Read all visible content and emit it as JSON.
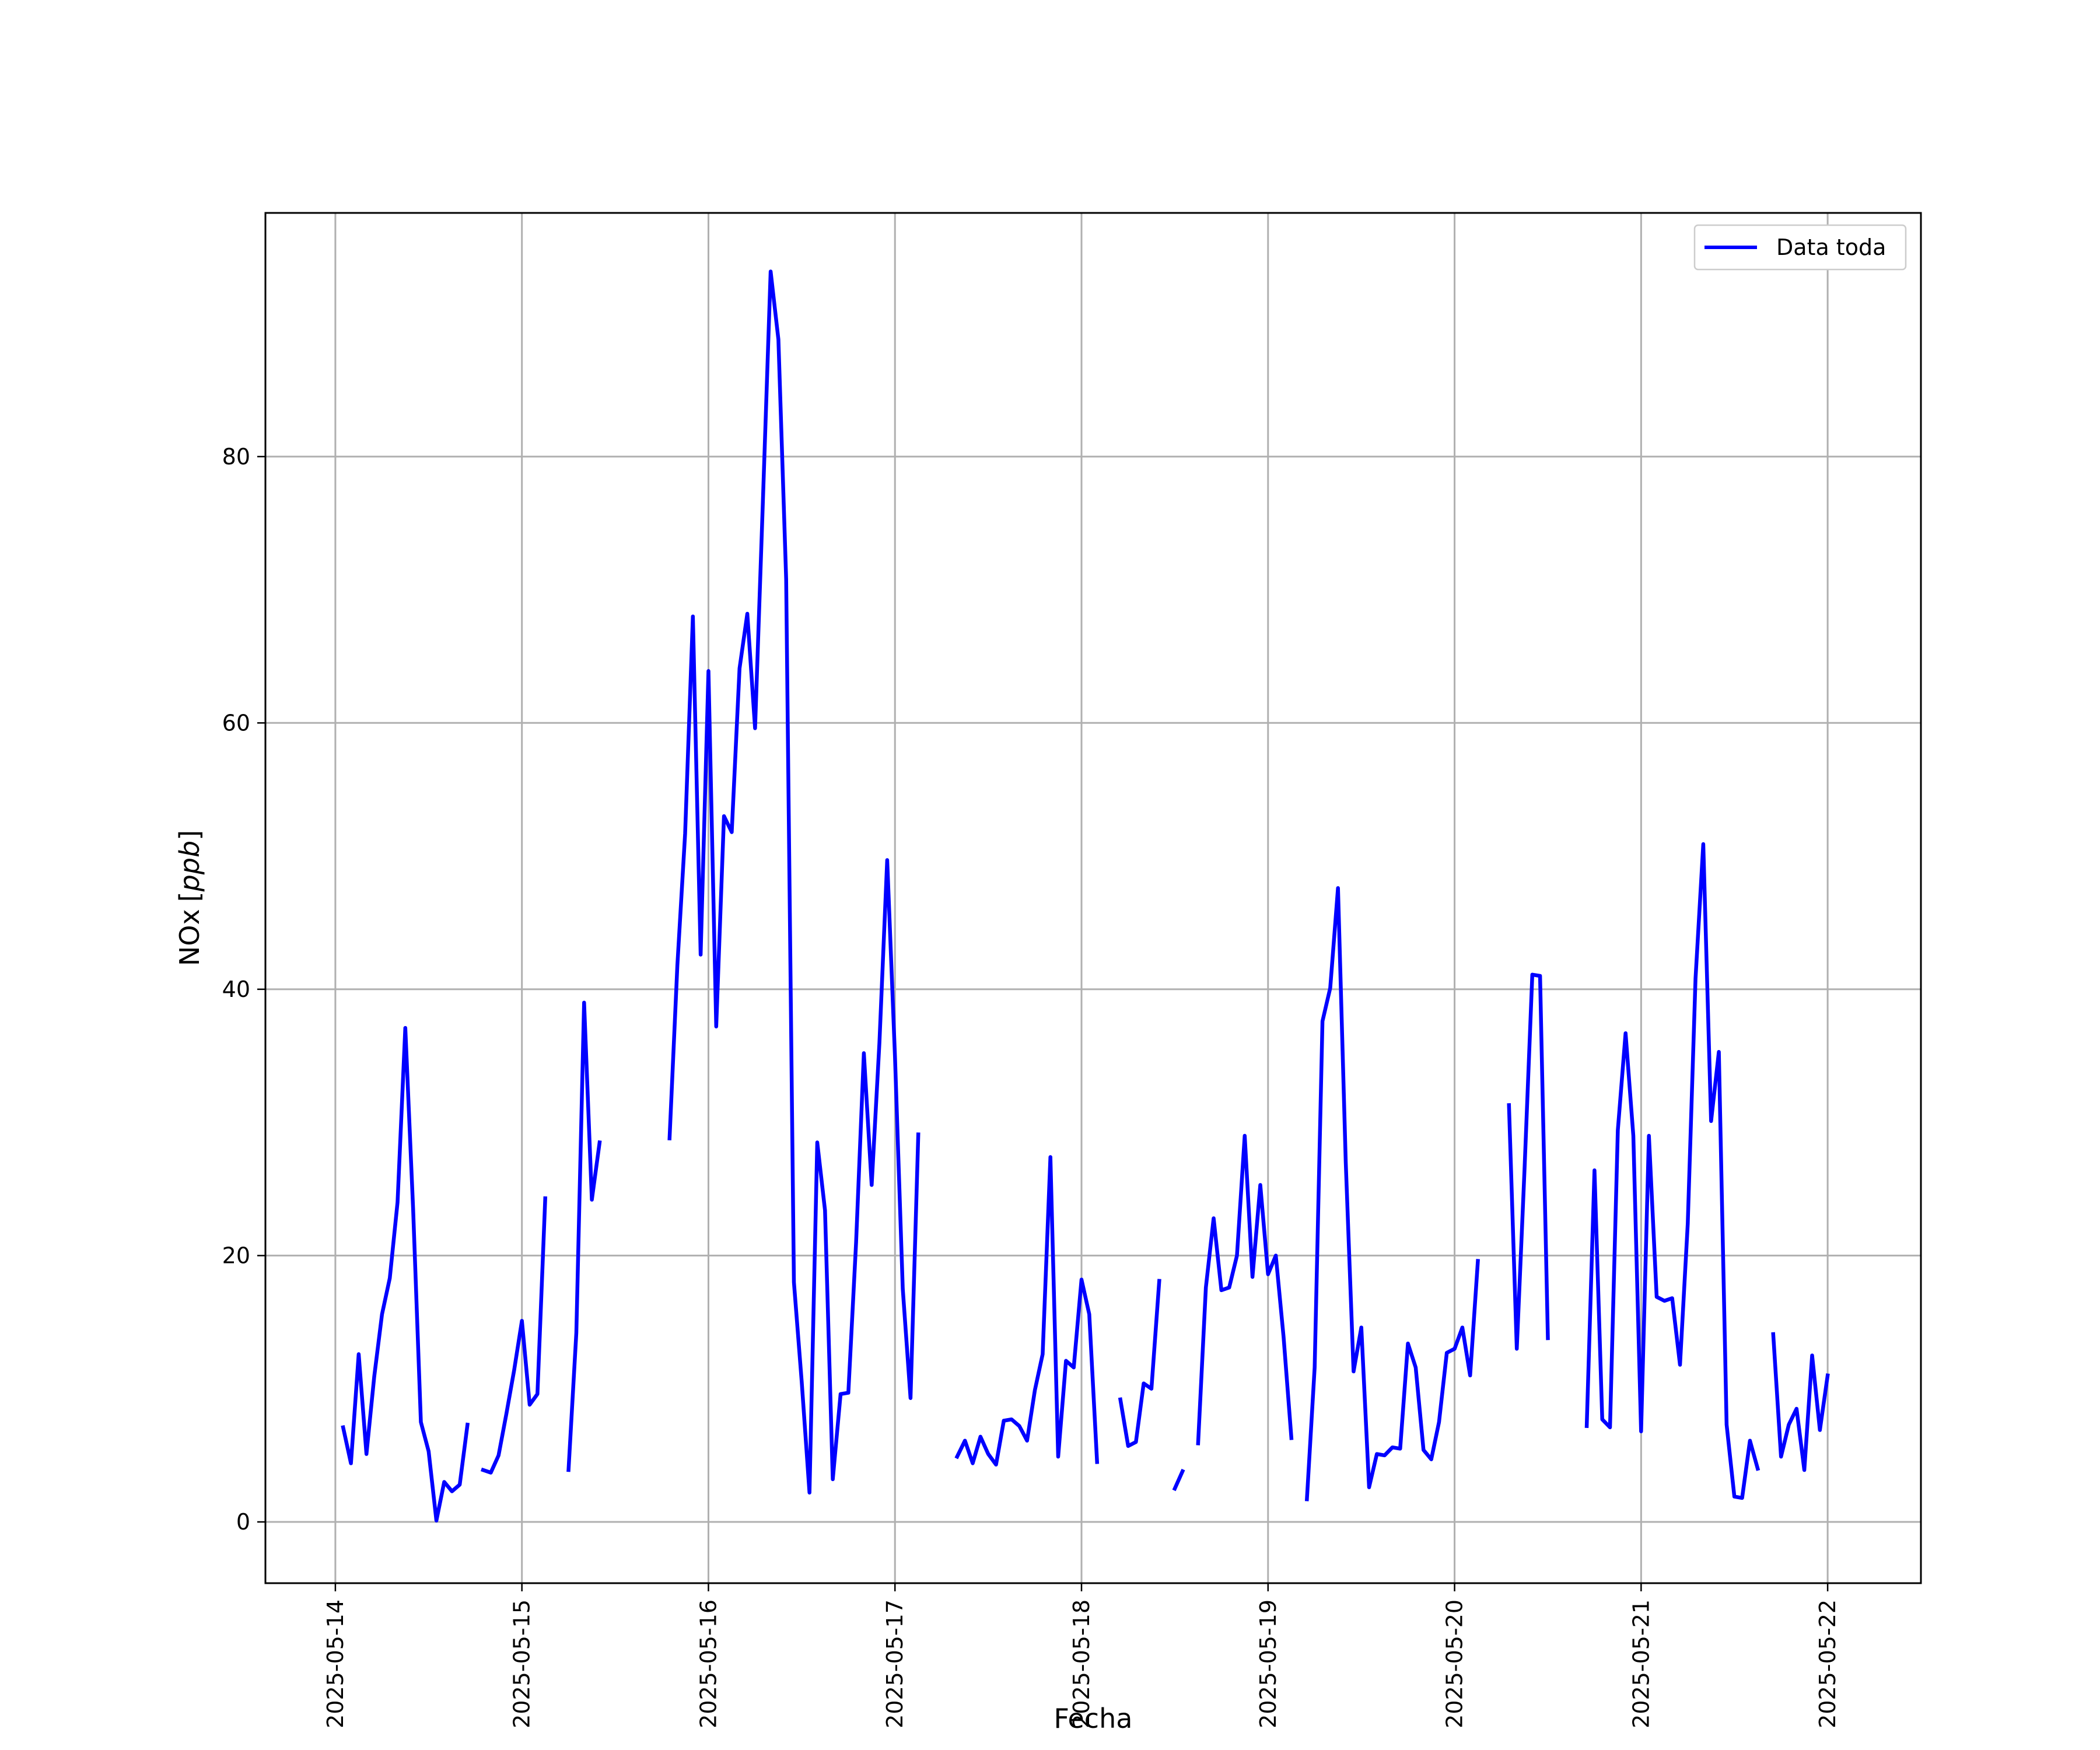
{
  "chart_data": {
    "type": "line",
    "xlabel": "Fecha",
    "ylabel": "NOx [ppb]",
    "ylabel_var": "NOx",
    "ylabel_unit": "ppb",
    "x_type": "datetime",
    "xlim": [
      "2025-05-13 15:00",
      "2025-05-22 12:00"
    ],
    "ylim": [
      -4.6,
      98.3
    ],
    "x_ticks": [
      "2025-05-14",
      "2025-05-15",
      "2025-05-16",
      "2025-05-17",
      "2025-05-18",
      "2025-05-19",
      "2025-05-20",
      "2025-05-21",
      "2025-05-22"
    ],
    "y_ticks": [
      0,
      20,
      40,
      60,
      80
    ],
    "grid": true,
    "legend_position": "top-right",
    "series": [
      {
        "name": "Data toda",
        "color": "#0000ff",
        "segments": [
          {
            "x": [
              "2025-05-14 01:00",
              "2025-05-14 02:00",
              "2025-05-14 03:00",
              "2025-05-14 04:00",
              "2025-05-14 05:00",
              "2025-05-14 06:00",
              "2025-05-14 07:00",
              "2025-05-14 08:00",
              "2025-05-14 09:00",
              "2025-05-14 10:00",
              "2025-05-14 11:00",
              "2025-05-14 12:00",
              "2025-05-14 13:00",
              "2025-05-14 14:00",
              "2025-05-14 15:00",
              "2025-05-14 16:00",
              "2025-05-14 17:00"
            ],
            "y": [
              7.1,
              4.4,
              12.6,
              5.1,
              10.9,
              15.6,
              18.3,
              24.0,
              37.1,
              23.5,
              7.5,
              5.3,
              0.1,
              3.0,
              2.3,
              2.8,
              7.3
            ]
          },
          {
            "x": [
              "2025-05-14 19:00",
              "2025-05-14 20:00",
              "2025-05-14 21:00",
              "2025-05-14 22:00",
              "2025-05-14 23:00",
              "2025-05-15 00:00",
              "2025-05-15 01:00",
              "2025-05-15 02:00",
              "2025-05-15 03:00"
            ],
            "y": [
              3.9,
              3.7,
              5.0,
              8.1,
              11.4,
              15.1,
              8.8,
              9.6,
              24.3
            ]
          },
          {
            "x": [
              "2025-05-15 06:00",
              "2025-05-15 07:00",
              "2025-05-15 08:00",
              "2025-05-15 09:00",
              "2025-05-15 10:00"
            ],
            "y": [
              3.9,
              14.2,
              39.0,
              24.2,
              28.5
            ]
          },
          {
            "x": [
              "2025-05-15 19:00",
              "2025-05-15 20:00",
              "2025-05-15 21:00",
              "2025-05-15 22:00",
              "2025-05-15 23:00",
              "2025-05-16 00:00",
              "2025-05-16 01:00",
              "2025-05-16 02:00",
              "2025-05-16 03:00",
              "2025-05-16 04:00",
              "2025-05-16 05:00",
              "2025-05-16 06:00",
              "2025-05-16 07:00",
              "2025-05-16 08:00",
              "2025-05-16 09:00",
              "2025-05-16 10:00",
              "2025-05-16 11:00",
              "2025-05-16 12:00",
              "2025-05-16 13:00",
              "2025-05-16 14:00",
              "2025-05-16 15:00",
              "2025-05-16 16:00",
              "2025-05-16 17:00",
              "2025-05-16 18:00",
              "2025-05-16 19:00",
              "2025-05-16 20:00",
              "2025-05-16 21:00",
              "2025-05-16 22:00",
              "2025-05-16 23:00",
              "2025-05-17 00:00",
              "2025-05-17 01:00",
              "2025-05-17 02:00",
              "2025-05-17 03:00"
            ],
            "y": [
              28.8,
              41.8,
              51.7,
              68.0,
              42.6,
              63.9,
              37.2,
              53.0,
              51.8,
              64.1,
              68.2,
              59.6,
              76.5,
              93.9,
              88.8,
              70.8,
              18.0,
              10.5,
              2.2,
              28.5,
              23.4,
              3.2,
              9.6,
              9.7,
              21.0,
              35.2,
              25.3,
              36.0,
              49.7,
              35.0,
              17.5,
              9.3,
              29.1
            ]
          },
          {
            "x": [
              "2025-05-17 08:00",
              "2025-05-17 09:00",
              "2025-05-17 10:00",
              "2025-05-17 11:00",
              "2025-05-17 12:00",
              "2025-05-17 13:00",
              "2025-05-17 14:00",
              "2025-05-17 15:00",
              "2025-05-17 16:00",
              "2025-05-17 17:00",
              "2025-05-17 18:00",
              "2025-05-17 19:00",
              "2025-05-17 20:00",
              "2025-05-17 21:00",
              "2025-05-17 22:00",
              "2025-05-17 23:00",
              "2025-05-18 00:00",
              "2025-05-18 01:00",
              "2025-05-18 02:00"
            ],
            "y": [
              4.9,
              6.1,
              4.4,
              6.4,
              5.1,
              4.3,
              7.6,
              7.7,
              7.2,
              6.1,
              9.9,
              12.6,
              27.4,
              4.9,
              12.1,
              11.6,
              18.2,
              15.6,
              4.5
            ]
          },
          {
            "x": [
              "2025-05-18 05:00",
              "2025-05-18 06:00",
              "2025-05-18 07:00",
              "2025-05-18 08:00",
              "2025-05-18 09:00",
              "2025-05-18 10:00"
            ],
            "y": [
              9.2,
              5.7,
              6.0,
              10.4,
              10.0,
              18.1
            ]
          },
          {
            "x": [
              "2025-05-18 12:00",
              "2025-05-18 13:00"
            ],
            "y": [
              2.5,
              3.8
            ]
          },
          {
            "x": [
              "2025-05-18 15:00",
              "2025-05-18 16:00",
              "2025-05-18 17:00",
              "2025-05-18 18:00",
              "2025-05-18 19:00",
              "2025-05-18 20:00",
              "2025-05-18 21:00",
              "2025-05-18 22:00",
              "2025-05-18 23:00",
              "2025-05-19 00:00",
              "2025-05-19 01:00",
              "2025-05-19 02:00",
              "2025-05-19 03:00"
            ],
            "y": [
              5.9,
              17.6,
              22.8,
              17.4,
              17.6,
              20.0,
              29.0,
              18.4,
              25.3,
              18.6,
              20.0,
              13.9,
              6.3
            ]
          },
          {
            "x": [
              "2025-05-19 05:00",
              "2025-05-19 06:00",
              "2025-05-19 07:00",
              "2025-05-19 08:00",
              "2025-05-19 09:00",
              "2025-05-19 10:00",
              "2025-05-19 11:00",
              "2025-05-19 12:00",
              "2025-05-19 13:00",
              "2025-05-19 14:00",
              "2025-05-19 15:00",
              "2025-05-19 16:00",
              "2025-05-19 17:00",
              "2025-05-19 18:00",
              "2025-05-19 19:00",
              "2025-05-19 20:00",
              "2025-05-19 21:00",
              "2025-05-19 22:00",
              "2025-05-19 23:00",
              "2025-05-20 00:00",
              "2025-05-20 01:00",
              "2025-05-20 02:00",
              "2025-05-20 03:00"
            ],
            "y": [
              1.7,
              11.6,
              37.6,
              40.1,
              47.6,
              27.0,
              11.3,
              14.6,
              2.6,
              5.1,
              5.0,
              5.6,
              5.5,
              13.4,
              11.6,
              5.4,
              4.7,
              7.5,
              12.7,
              13.0,
              14.6,
              11.0,
              19.6
            ]
          },
          {
            "x": [
              "2025-05-20 07:00",
              "2025-05-20 08:00",
              "2025-05-20 09:00",
              "2025-05-20 10:00",
              "2025-05-20 11:00",
              "2025-05-20 12:00"
            ],
            "y": [
              31.3,
              13.0,
              26.5,
              41.1,
              41.0,
              13.8
            ]
          },
          {
            "x": [
              "2025-05-20 17:00",
              "2025-05-20 18:00",
              "2025-05-20 19:00",
              "2025-05-20 20:00",
              "2025-05-20 21:00",
              "2025-05-20 22:00",
              "2025-05-20 23:00",
              "2025-05-21 00:00",
              "2025-05-21 01:00",
              "2025-05-21 02:00",
              "2025-05-21 03:00",
              "2025-05-21 04:00",
              "2025-05-21 05:00",
              "2025-05-21 06:00",
              "2025-05-21 07:00",
              "2025-05-21 08:00",
              "2025-05-21 09:00",
              "2025-05-21 10:00",
              "2025-05-21 11:00",
              "2025-05-21 12:00",
              "2025-05-21 13:00",
              "2025-05-21 14:00",
              "2025-05-21 15:00"
            ],
            "y": [
              7.2,
              26.4,
              7.7,
              7.1,
              29.4,
              36.7,
              29.0,
              6.8,
              29.0,
              16.9,
              16.6,
              16.8,
              11.8,
              22.4,
              40.8,
              50.9,
              30.1,
              35.3,
              7.3,
              1.9,
              1.8,
              6.1,
              4.0
            ]
          },
          {
            "x": [
              "2025-05-21 17:00",
              "2025-05-21 18:00",
              "2025-05-21 19:00",
              "2025-05-21 20:00",
              "2025-05-21 21:00",
              "2025-05-21 22:00",
              "2025-05-21 23:00",
              "2025-05-22 00:00"
            ],
            "y": [
              14.1,
              4.9,
              7.3,
              8.5,
              3.9,
              12.5,
              6.9,
              11.0
            ]
          }
        ]
      }
    ]
  }
}
